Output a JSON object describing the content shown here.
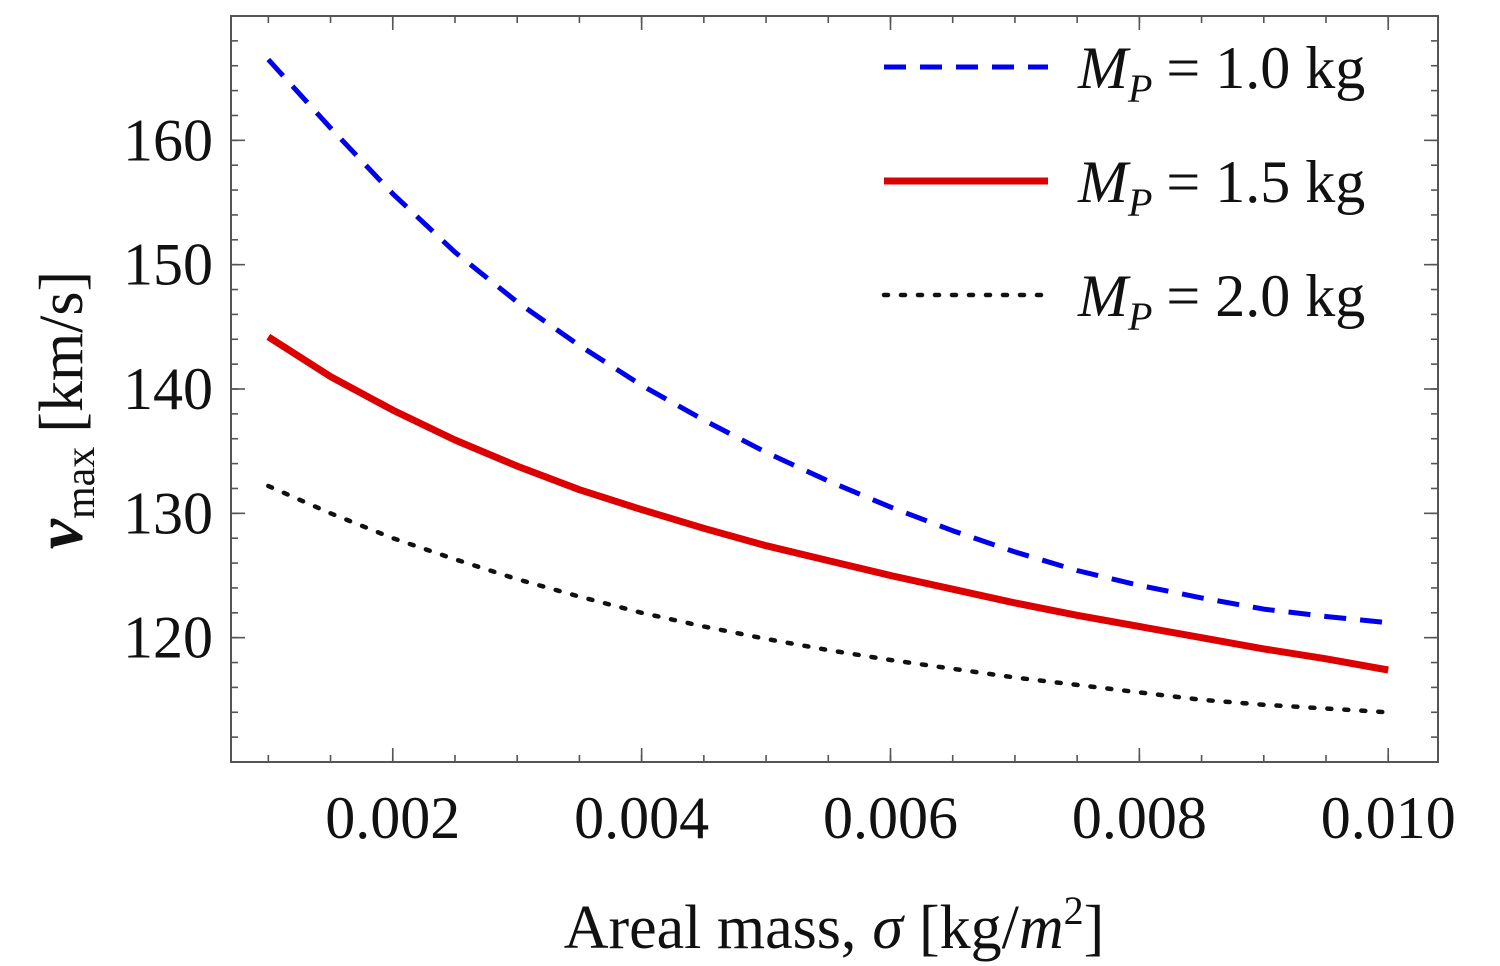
{
  "chart_data": {
    "type": "line",
    "title": "",
    "xlabel": "Areal mass, σ [kg/m²]",
    "xlabel_text": "Areal mass,",
    "xlabel_symbol": "σ",
    "xlabel_unit_open": "[kg/",
    "xlabel_unit_m": "m",
    "xlabel_unit_exp": "2",
    "xlabel_unit_close": "]",
    "ylabel": "v_max [km/s]",
    "ylabel_v": "v",
    "ylabel_sub": "max",
    "ylabel_unit": "[km/s]",
    "xlim": [
      0.0007,
      0.0104
    ],
    "ylim": [
      110,
      170
    ],
    "x_ticks": [
      0.002,
      0.004,
      0.006,
      0.008,
      0.01
    ],
    "x_tick_labels": [
      "0.002",
      "0.004",
      "0.006",
      "0.008",
      "0.010"
    ],
    "y_ticks": [
      120,
      130,
      140,
      150,
      160
    ],
    "y_tick_labels": [
      "120",
      "130",
      "140",
      "150",
      "160"
    ],
    "grid": false,
    "legend_position": "top-right",
    "x": [
      0.001,
      0.0015,
      0.002,
      0.0025,
      0.003,
      0.0035,
      0.004,
      0.0045,
      0.005,
      0.0055,
      0.006,
      0.0065,
      0.007,
      0.0075,
      0.008,
      0.0085,
      0.009,
      0.0095,
      0.01
    ],
    "series": [
      {
        "name": "M_P = 1.0 kg",
        "legend_symbol": "M",
        "legend_sub": "P",
        "legend_value": "= 1.0 kg",
        "color": "#0000ee",
        "style": "dashed",
        "values": [
          166.5,
          161.0,
          155.7,
          151.0,
          147.0,
          143.5,
          140.3,
          137.5,
          134.9,
          132.6,
          130.5,
          128.6,
          126.9,
          125.4,
          124.2,
          123.2,
          122.3,
          121.7,
          121.2
        ]
      },
      {
        "name": "M_P = 1.5 kg",
        "legend_symbol": "M",
        "legend_sub": "P",
        "legend_value": "= 1.5 kg",
        "color": "#dd0000",
        "style": "solid",
        "values": [
          144.2,
          141.0,
          138.3,
          135.9,
          133.8,
          131.9,
          130.3,
          128.8,
          127.4,
          126.2,
          125.0,
          123.9,
          122.8,
          121.8,
          120.9,
          120.0,
          119.1,
          118.3,
          117.4
        ]
      },
      {
        "name": "M_P = 2.0 kg",
        "legend_symbol": "M",
        "legend_sub": "P",
        "legend_value": "= 2.0 kg",
        "color": "#111111",
        "style": "dotted",
        "values": [
          132.2,
          130.0,
          128.0,
          126.3,
          124.7,
          123.3,
          122.0,
          120.9,
          119.9,
          119.0,
          118.2,
          117.5,
          116.8,
          116.2,
          115.6,
          115.0,
          114.6,
          114.3,
          114.0
        ]
      }
    ]
  }
}
